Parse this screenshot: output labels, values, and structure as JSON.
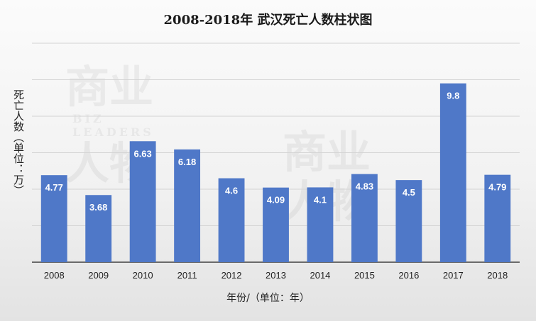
{
  "chart_data": {
    "type": "bar",
    "title": "2008-2018年  武汉死亡人数柱状图",
    "xlabel": "年份/（单位：年）",
    "ylabel": "死亡人数（单位：万）",
    "categories": [
      "2008",
      "2009",
      "2010",
      "2011",
      "2012",
      "2013",
      "2014",
      "2015",
      "2016",
      "2017",
      "2018"
    ],
    "values": [
      4.77,
      3.68,
      6.63,
      6.18,
      4.6,
      4.09,
      4.1,
      4.83,
      4.5,
      9.8,
      4.79
    ],
    "value_labels": [
      "4.77",
      "3.68",
      "6.63",
      "6.18",
      "4.6",
      "4.09",
      "4.1",
      "4.83",
      "4.5",
      "9.8",
      "4.79"
    ],
    "ylim": [
      0,
      12
    ],
    "grid": true,
    "bar_color": "#4f78c8",
    "label_color": "#ffffff"
  },
  "watermark": {
    "text": "商业人物",
    "latin": "BIZ LEADERS"
  }
}
